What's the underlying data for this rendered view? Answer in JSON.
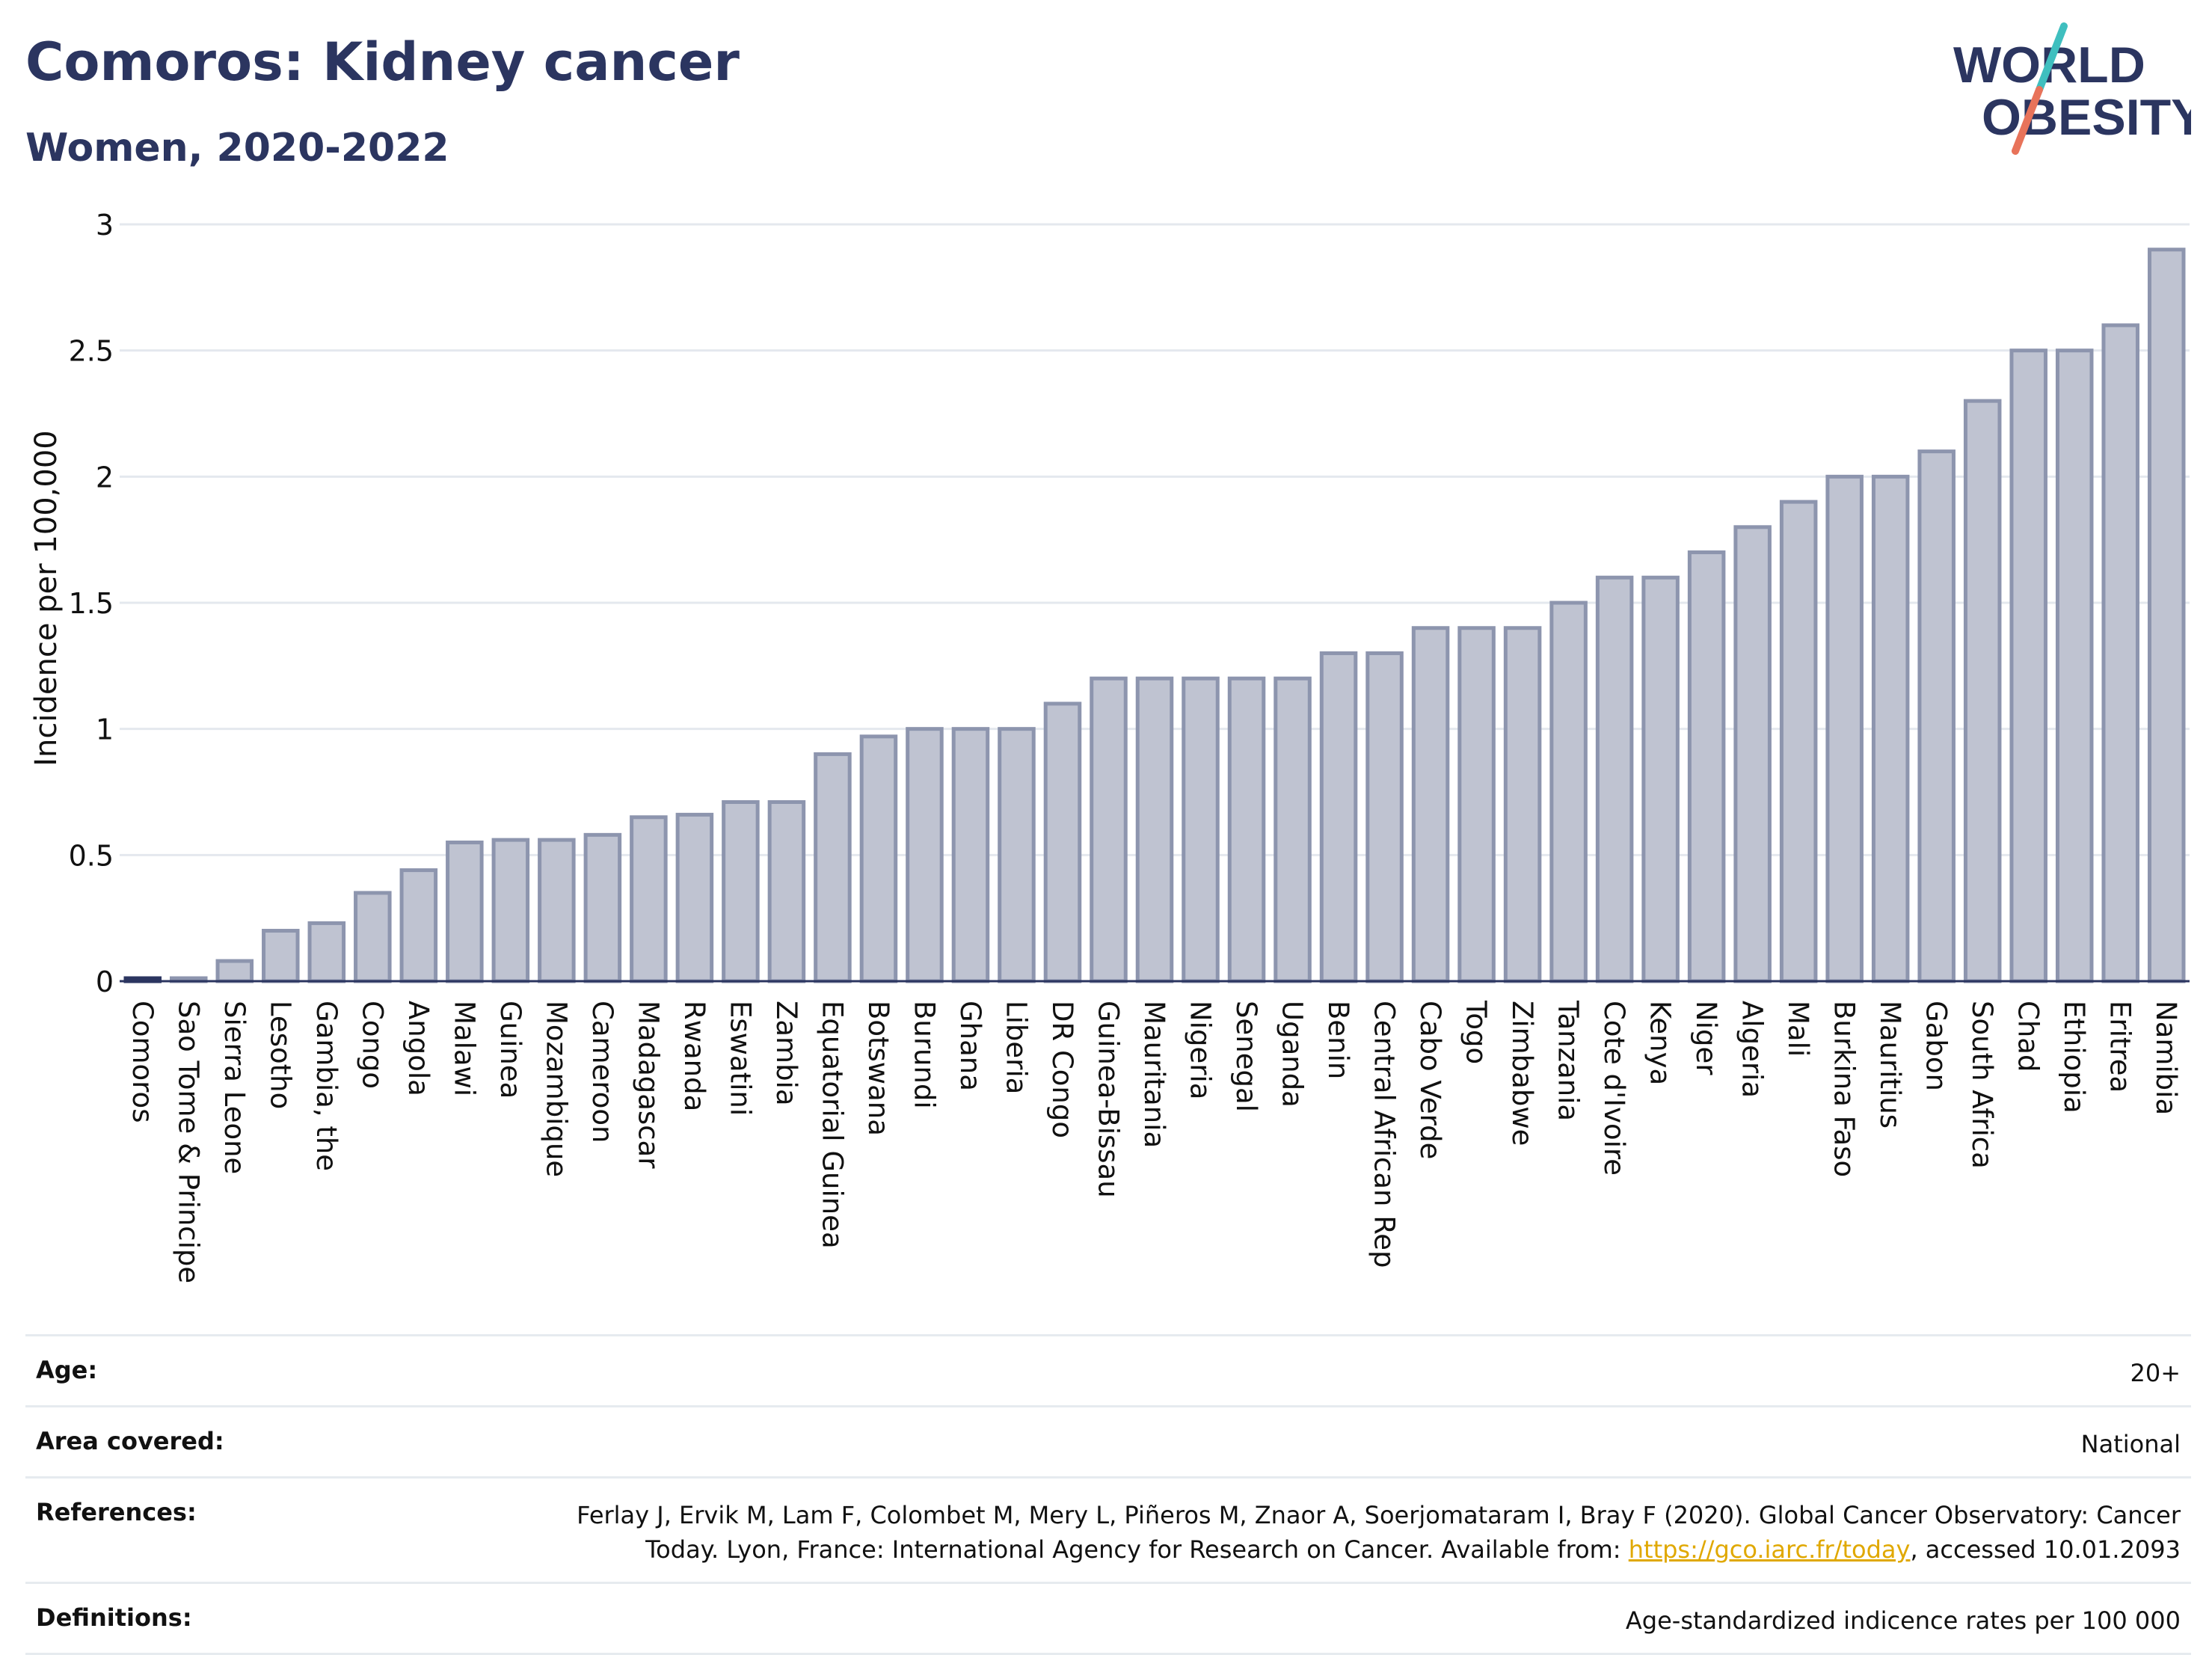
{
  "header": {
    "title": "Comoros: Kidney cancer",
    "subtitle": "Women, 2020-2022"
  },
  "logo": {
    "line1": "WORLD",
    "line2": "OBESITY",
    "colors": {
      "text": "#2b3560",
      "slash_top": "#3fbfbf",
      "slash_bottom": "#e8735a"
    }
  },
  "chart_data": {
    "type": "bar",
    "ylabel": "Incidence per 100,000",
    "xlabel": "",
    "ylim": [
      0,
      3
    ],
    "yticks": [
      0,
      0.5,
      1,
      1.5,
      2,
      2.5,
      3
    ],
    "ytick_labels": [
      "0",
      "0.5",
      "1",
      "1.5",
      "2",
      "2.5",
      "3"
    ],
    "grid": true,
    "highlight": "Comoros",
    "colors": {
      "bar": "#bfc3d1",
      "bar_border": "#8d95ae",
      "highlight": "#2b3560",
      "grid": "#e4e8ee",
      "axis": "#2b3560"
    },
    "categories": [
      "Comoros",
      "Sao Tome & Principe",
      "Sierra Leone",
      "Lesotho",
      "Gambia, the",
      "Congo",
      "Angola",
      "Malawi",
      "Guinea",
      "Mozambique",
      "Cameroon",
      "Madagascar",
      "Rwanda",
      "Eswatini",
      "Zambia",
      "Equatorial Guinea",
      "Botswana",
      "Burundi",
      "Ghana",
      "Liberia",
      "DR Congo",
      "Guinea-Bissau",
      "Mauritania",
      "Nigeria",
      "Senegal",
      "Uganda",
      "Benin",
      "Central African Rep",
      "Cabo Verde",
      "Togo",
      "Zimbabwe",
      "Tanzania",
      "Cote d'Ivoire",
      "Kenya",
      "Niger",
      "Algeria",
      "Mali",
      "Burkina Faso",
      "Mauritius",
      "Gabon",
      "South Africa",
      "Chad",
      "Ethiopia",
      "Eritrea",
      "Namibia"
    ],
    "values": [
      0.01,
      0.01,
      0.08,
      0.2,
      0.23,
      0.35,
      0.44,
      0.55,
      0.56,
      0.56,
      0.58,
      0.65,
      0.66,
      0.71,
      0.71,
      0.9,
      0.97,
      1.0,
      1.0,
      1.0,
      1.1,
      1.2,
      1.2,
      1.2,
      1.2,
      1.2,
      1.3,
      1.3,
      1.4,
      1.4,
      1.4,
      1.5,
      1.6,
      1.6,
      1.7,
      1.8,
      1.9,
      2.0,
      2.0,
      2.1,
      2.3,
      2.5,
      2.5,
      2.6,
      2.9
    ]
  },
  "footer": {
    "age_label": "Age:",
    "age_value": "20+",
    "area_label": "Area covered:",
    "area_value": "National",
    "references_label": "References:",
    "references_text": "Ferlay J, Ervik M, Lam F, Colombet M, Mery L, Piñeros M, Znaor A, Soerjomataram I, Bray F (2020). Global Cancer Observatory: Cancer Today. Lyon, France: International Agency for Research on Cancer. Available from: ",
    "references_link": "https://gco.iarc.fr/today",
    "references_suffix": ", accessed 10.01.2093",
    "definitions_label": "Definitions:",
    "definitions_value": "Age-standardized indicence rates per 100 000"
  }
}
